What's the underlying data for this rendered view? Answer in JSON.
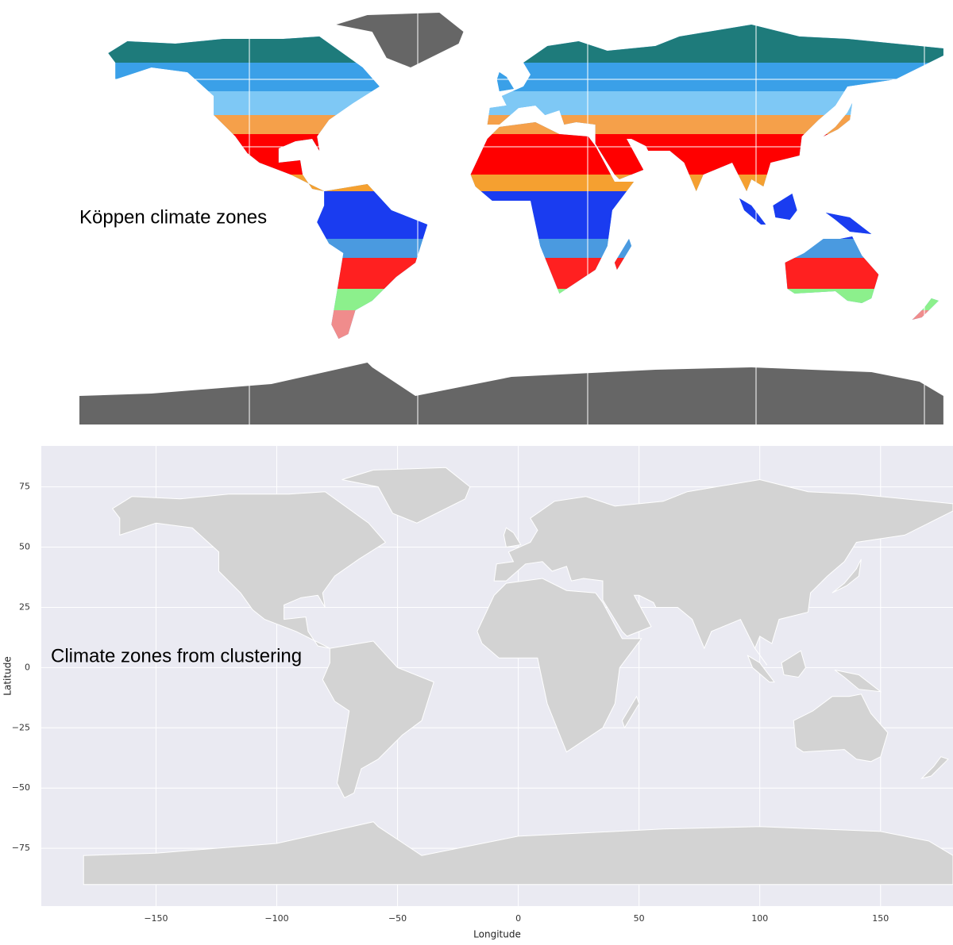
{
  "top_map": {
    "label": "Köppen climate zones"
  },
  "bottom_map": {
    "label": "Climate zones from clustering",
    "x_label": "Longitude",
    "y_label": "Latitude",
    "xlim": [
      -197.5,
      180
    ],
    "ylim": [
      -99,
      92
    ],
    "xticks": [
      {
        "value": -150,
        "label": "−150"
      },
      {
        "value": -100,
        "label": "−100"
      },
      {
        "value": -50,
        "label": "−50"
      },
      0,
      50,
      100,
      150
    ],
    "yticks": [
      75,
      50,
      25,
      0,
      {
        "value": -25,
        "label": "−25"
      },
      {
        "value": -50,
        "label": "−50"
      },
      {
        "value": -75,
        "label": "−75"
      }
    ]
  }
}
